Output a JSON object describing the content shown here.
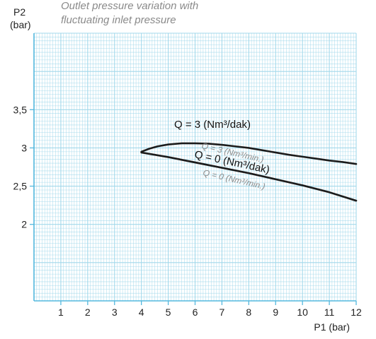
{
  "chart_data": {
    "type": "line",
    "title": "Outlet pressure variation with\nfluctuating inlet pressure",
    "title_lines": [
      "Outlet pressure variation with",
      "fluctuating inlet pressure"
    ],
    "xlabel": "P1 (bar)",
    "ylabel_lines": [
      "P2",
      "(bar)"
    ],
    "xlim": [
      0,
      12
    ],
    "ylim": [
      1,
      4.5
    ],
    "x_ticks": [
      1,
      2,
      3,
      4,
      5,
      6,
      7,
      8,
      9,
      10,
      11,
      12
    ],
    "x_tick_labels": [
      "1",
      "2",
      "3",
      "4",
      "5",
      "6",
      "7",
      "8",
      "9",
      "10",
      "11",
      "12"
    ],
    "y_ticks": [
      2,
      2.5,
      3,
      3.5
    ],
    "y_tick_labels": [
      "2",
      "2,5",
      "3",
      "3,5"
    ],
    "grid": true,
    "colors": {
      "grid": "#9fd7ea",
      "axis": "#54b8de",
      "series": "#1c1c1c",
      "title": "#8a8a8a",
      "secondary_label": "#8c8c8c"
    },
    "series": [
      {
        "name": "Q = 3 (Nm³/dak)",
        "labels": [
          "Q = 3  (Nm³/dak)",
          "Q = 3 (Nm³/min.)"
        ],
        "x": [
          4.0,
          4.3,
          4.6,
          5.0,
          5.5,
          6.0,
          6.5,
          7.0,
          7.5,
          8.0,
          8.5,
          9.0,
          9.5,
          10.0,
          10.5,
          11.0,
          11.5,
          12.0
        ],
        "y": [
          2.95,
          2.99,
          3.02,
          3.045,
          3.06,
          3.06,
          3.055,
          3.04,
          3.02,
          3.0,
          2.97,
          2.94,
          2.91,
          2.885,
          2.86,
          2.835,
          2.815,
          2.79
        ]
      },
      {
        "name": "Q = 0 (Nm³/dak)",
        "labels": [
          "Q =  0  (Nm³/dak)",
          "Q = 0 (Nm³/min.)"
        ],
        "x": [
          4.0,
          5.0,
          6.0,
          7.0,
          8.0,
          9.0,
          10.0,
          11.0,
          12.0
        ],
        "y": [
          2.94,
          2.88,
          2.81,
          2.74,
          2.67,
          2.59,
          2.51,
          2.42,
          2.31
        ]
      }
    ]
  }
}
